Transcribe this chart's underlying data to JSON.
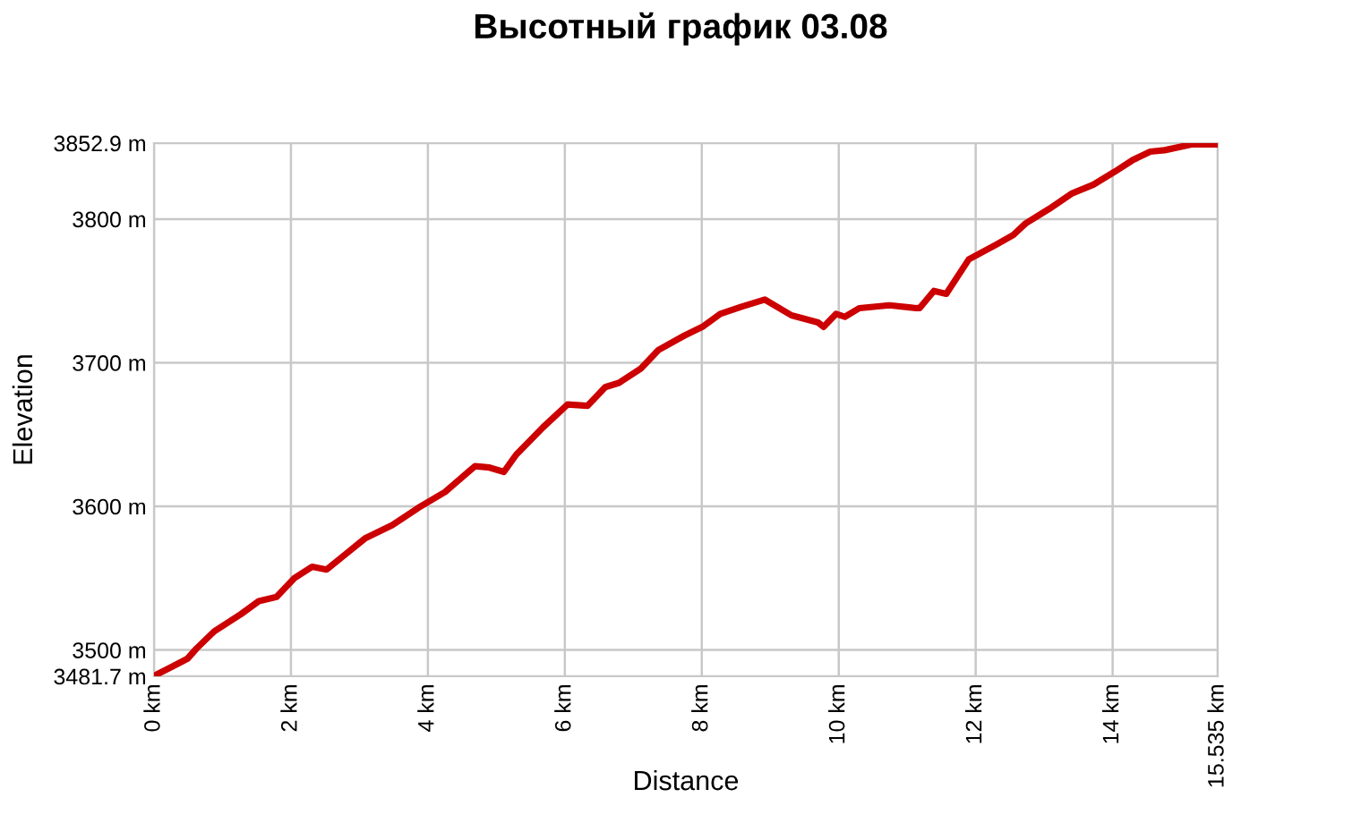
{
  "chart_data": {
    "type": "line",
    "title": "Высотный график 03.08",
    "xlabel": "Distance",
    "ylabel": "Elevation",
    "x": [
      0,
      0.29,
      0.49,
      0.62,
      0.88,
      1.27,
      1.53,
      1.79,
      2.05,
      2.31,
      2.52,
      2.83,
      3.09,
      3.48,
      3.86,
      4.25,
      4.59,
      4.69,
      4.9,
      5.11,
      5.29,
      5.68,
      6.04,
      6.33,
      6.59,
      6.79,
      7.11,
      7.37,
      7.75,
      8.01,
      8.27,
      8.58,
      8.92,
      9.31,
      9.7,
      9.78,
      9.96,
      10.09,
      10.3,
      10.74,
      11.13,
      11.18,
      11.39,
      11.57,
      11.9,
      12.29,
      12.55,
      12.73,
      13.07,
      13.41,
      13.72,
      14.03,
      14.29,
      14.55,
      14.76,
      15.15,
      15.535
    ],
    "series": [
      {
        "color": "#cc0000",
        "values": [
          3482,
          3489,
          3494,
          3501,
          3513,
          3525,
          3534,
          3537,
          3550,
          3558,
          3556,
          3568,
          3578,
          3587,
          3599,
          3610,
          3624,
          3628,
          3627,
          3624,
          3636,
          3655,
          3671,
          3670,
          3683,
          3686,
          3696,
          3709,
          3719,
          3725,
          3734,
          3739,
          3744,
          3733,
          3728,
          3725,
          3734,
          3732,
          3738,
          3740,
          3738,
          3738,
          3750,
          3748,
          3772,
          3782,
          3789,
          3797,
          3807,
          3818,
          3824,
          3833,
          3841,
          3847,
          3848,
          3852,
          3852
        ]
      }
    ],
    "xlim": [
      0,
      15.535
    ],
    "ylim": [
      3481.7,
      3852.9
    ],
    "xticks": [
      {
        "value": 0,
        "label": "0 km"
      },
      {
        "value": 2,
        "label": "2 km"
      },
      {
        "value": 4,
        "label": "4 km"
      },
      {
        "value": 6,
        "label": "6 km"
      },
      {
        "value": 8,
        "label": "8 km"
      },
      {
        "value": 10,
        "label": "10 km"
      },
      {
        "value": 12,
        "label": "12 km"
      },
      {
        "value": 14,
        "label": "14 km"
      },
      {
        "value": 15.535,
        "label": "15.535 km"
      }
    ],
    "yticks": [
      {
        "value": 3481.7,
        "label": "3481.7 m"
      },
      {
        "value": 3500,
        "label": "3500 m"
      },
      {
        "value": 3600,
        "label": "3600 m"
      },
      {
        "value": 3700,
        "label": "3700 m"
      },
      {
        "value": 3800,
        "label": "3800 m"
      },
      {
        "value": 3852.9,
        "label": "3852.9 m"
      }
    ],
    "grid": true,
    "legend": false,
    "marker": "none",
    "line_style": "solid"
  }
}
